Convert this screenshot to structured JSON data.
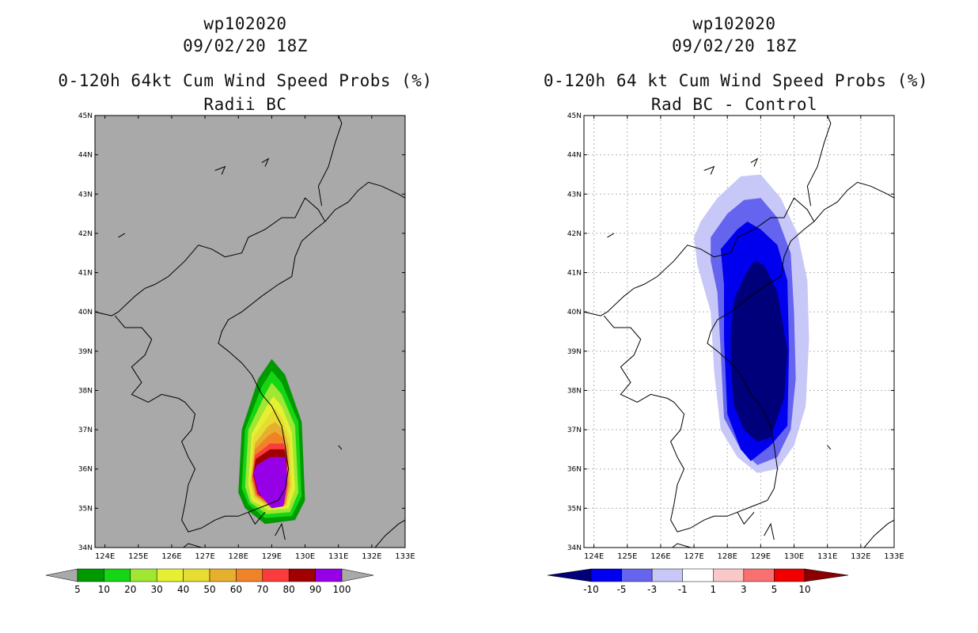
{
  "chart_data": [
    {
      "type": "heatmap",
      "storm_id": "wp102020",
      "datetime": "09/02/20 18Z",
      "title": "0-120h 64kt Cum Wind Speed Probs (%)",
      "subtitle": "Radii BC",
      "lon_range": [
        123.7,
        133.0
      ],
      "lat_range": [
        34.0,
        45.0
      ],
      "x_ticks": [
        "124E",
        "125E",
        "126E",
        "127E",
        "128E",
        "129E",
        "130E",
        "131E",
        "132E",
        "133E"
      ],
      "y_ticks": [
        "34N",
        "35N",
        "36N",
        "37N",
        "38N",
        "39N",
        "40N",
        "41N",
        "42N",
        "43N",
        "44N",
        "45N"
      ],
      "grid": false,
      "background": "#a9a9a9",
      "colorbar": {
        "labels": [
          "5",
          "10",
          "20",
          "30",
          "40",
          "50",
          "60",
          "70",
          "80",
          "90",
          "100"
        ],
        "colors": [
          "#009a00",
          "#14d614",
          "#a0e632",
          "#e6f032",
          "#e6dc32",
          "#e6af2d",
          "#f08228",
          "#fa3c3c",
          "#a00000",
          "#9600e6"
        ],
        "end_colors": [
          "#a9a9a9",
          "#a9a9a9"
        ]
      }
    },
    {
      "type": "heatmap",
      "storm_id": "wp102020",
      "datetime": "09/02/20 18Z",
      "title": "0-120h 64 kt Cum Wind Speed Probs (%)",
      "subtitle": "Rad BC - Control",
      "lon_range": [
        123.7,
        133.0
      ],
      "lat_range": [
        34.0,
        45.0
      ],
      "x_ticks": [
        "124E",
        "125E",
        "126E",
        "127E",
        "128E",
        "129E",
        "130E",
        "131E",
        "132E",
        "133E"
      ],
      "y_ticks": [
        "34N",
        "35N",
        "36N",
        "37N",
        "38N",
        "39N",
        "40N",
        "41N",
        "42N",
        "43N",
        "44N",
        "45N"
      ],
      "grid": true,
      "background": "#ffffff",
      "colorbar": {
        "labels": [
          "-10",
          "-5",
          "-3",
          "-1",
          "1",
          "3",
          "5",
          "10"
        ],
        "colors": [
          "#0000ee",
          "#6464ee",
          "#c8c8f8",
          "#ffffff",
          "#fac8c8",
          "#f87070",
          "#f00000"
        ],
        "end_colors": [
          "#00007a",
          "#8a0000"
        ]
      }
    }
  ]
}
